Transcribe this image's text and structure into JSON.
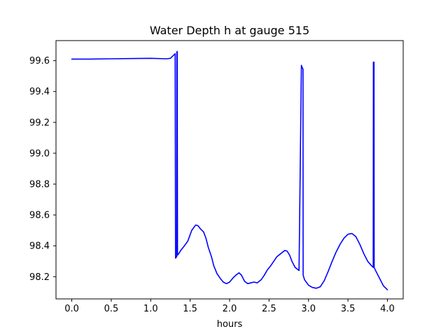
{
  "chart_data": {
    "type": "line",
    "title": "Water Depth h at gauge 515",
    "xlabel": "hours",
    "ylabel": "",
    "xlim": [
      -0.2,
      4.2
    ],
    "ylim": [
      98.056,
      99.73
    ],
    "x_ticks": [
      0.0,
      0.5,
      1.0,
      1.5,
      2.0,
      2.5,
      3.0,
      3.5,
      4.0
    ],
    "x_tick_labels": [
      "0.0",
      "0.5",
      "1.0",
      "1.5",
      "2.0",
      "2.5",
      "3.0",
      "3.5",
      "4.0"
    ],
    "y_ticks": [
      98.2,
      98.4,
      98.6,
      98.8,
      99.0,
      99.2,
      99.4,
      99.6
    ],
    "y_tick_labels": [
      "98.2",
      "98.4",
      "98.6",
      "98.8",
      "99.0",
      "99.2",
      "99.4",
      "99.6"
    ],
    "grid": false,
    "series": [
      {
        "color": "#0000ff",
        "x": [
          0.0,
          0.2,
          0.5,
          0.8,
          1.0,
          1.2,
          1.25,
          1.3,
          1.31,
          1.315,
          1.33,
          1.331,
          1.336,
          1.34,
          1.35,
          1.38,
          1.42,
          1.47,
          1.52,
          1.57,
          1.6,
          1.63,
          1.67,
          1.7,
          1.73,
          1.77,
          1.8,
          1.84,
          1.88,
          1.92,
          1.96,
          2.0,
          2.04,
          2.08,
          2.12,
          2.15,
          2.19,
          2.23,
          2.27,
          2.31,
          2.35,
          2.4,
          2.44,
          2.48,
          2.52,
          2.56,
          2.6,
          2.65,
          2.7,
          2.73,
          2.76,
          2.79,
          2.83,
          2.88,
          2.91,
          2.912,
          2.93,
          2.932,
          2.95,
          3.0,
          3.05,
          3.1,
          3.15,
          3.2,
          3.25,
          3.3,
          3.35,
          3.4,
          3.45,
          3.5,
          3.55,
          3.6,
          3.65,
          3.7,
          3.75,
          3.8,
          3.82,
          3.822,
          3.83,
          3.832,
          3.85,
          3.9,
          3.95,
          4.0
        ],
        "y": [
          99.61,
          99.61,
          99.612,
          99.614,
          99.615,
          99.612,
          99.615,
          99.64,
          99.645,
          98.32,
          98.33,
          99.655,
          99.66,
          98.34,
          98.345,
          98.37,
          98.395,
          98.43,
          98.5,
          98.535,
          98.53,
          98.51,
          98.49,
          98.45,
          98.39,
          98.33,
          98.27,
          98.22,
          98.19,
          98.165,
          98.155,
          98.165,
          98.19,
          98.21,
          98.225,
          98.21,
          98.17,
          98.155,
          98.16,
          98.165,
          98.16,
          98.18,
          98.21,
          98.245,
          98.27,
          98.3,
          98.33,
          98.35,
          98.37,
          98.365,
          98.34,
          98.3,
          98.26,
          98.24,
          99.57,
          99.565,
          99.545,
          98.21,
          98.18,
          98.145,
          98.13,
          98.125,
          98.135,
          98.175,
          98.235,
          98.3,
          98.36,
          98.41,
          98.45,
          98.475,
          98.48,
          98.46,
          98.41,
          98.35,
          98.3,
          98.27,
          98.26,
          99.59,
          99.59,
          98.26,
          98.24,
          98.19,
          98.14,
          98.115
        ]
      }
    ]
  }
}
